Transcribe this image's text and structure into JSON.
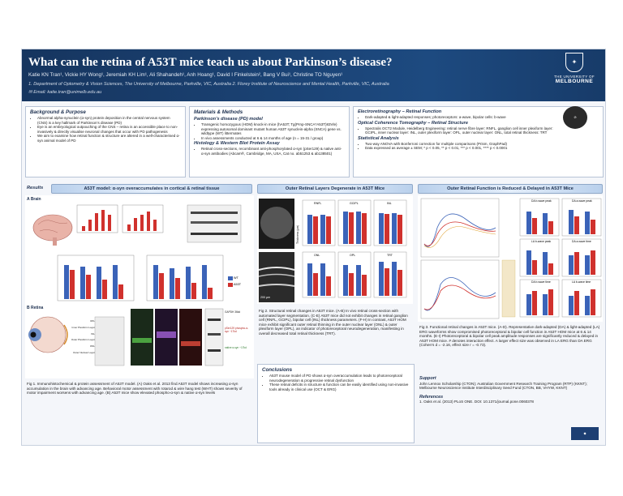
{
  "header": {
    "title": "What can the retina of A53T mice teach us about Parkinson’s disease?",
    "authors": "Katie KN Tran¹, Vickie HY Wong¹, Jeremiah KH Lim¹, Ali Shahandeh¹, Anh Hoang¹, David I Finkelstein², Bang V Bui¹, Christine TO Nguyen¹",
    "affiliations": "1. Department of Optometry & Vision Sciences, The University of Melbourne, Parkville, VIC, Australia  2. Florey Institute of Neuroscience and Mental Health, Parkville, VIC, Australia",
    "email": "✉ Email: katie.tran@unimelb.edu.au",
    "logo_line1": "THE UNIVERSITY OF",
    "logo_line2": "MELBOURNE"
  },
  "background": {
    "heading": "Background & Purpose",
    "bullets": [
      "Abnormal alpha-synuclein (α-syn) protein deposition in the central nervous system (CNS) is a key hallmark of Parkinson’s disease (PD)",
      "Eye is an embryological outpouching of the CNS – retina is an accessible place to non-invasively & directly visualise neuronal changes that occur with PD pathogenesis",
      "We aim to examine how retinal function & structure are altered in a well-characterised α-syn animal model of PD"
    ]
  },
  "methods": {
    "heading": "Materials & Methods",
    "sub1": "Parkinson’s disease (PD) model",
    "bullets1": [
      "Transgenic homozygous (HOM) knock-in mice (hA53T; Tg(Prnp-SNCA*A53T)83Vle) expressing autosomal dominant mutant human A53T synuclein-alpha (SNCA) gene vs. wildtype (WT) littermates",
      "In vivo assessments conducted at 6 & 14 months of age (n = 15-31 / group)"
    ],
    "sub2": "Histology & Western Blot Protein Assay",
    "bullets2": [
      "Retinal cross-sections, recombinant anti-phosphorylated α-syn (pSer129) & native anti-α-syn antibodies (Abcam®, Cambridge, MA, USA, Cat no. ab51253 & ab138501)"
    ]
  },
  "ephys": {
    "sub1": "Electroretinography – Retinal Function",
    "bullets1": [
      "Dark-adapted & light-adapted responses; photoreceptors: a-wave, bipolar cells: b-wave"
    ],
    "sub2": "Optical Coherence Tomography – Retinal Structure",
    "bullets2": [
      "Spectralis OCT2 Module, Heidelberg Engineering: retinal nerve fibre layer: RNFL, ganglion cell inner plexiform layer: GCIPL, inner nuclear layer: INL, outer plexiform layer: OPL, outer nuclear layer: ONL, total retinal thickness: TRT"
    ],
    "sub3": "Statistical Analysis",
    "bullets3": [
      "Two-way ANOVA with Bonferroni correction for multiple comparisons (Prism, GraphPad)",
      "Data expressed as average ± SEM; * p < 0.05, ** p < 0.01, *** p < 0.001, **** p < 0.0001"
    ]
  },
  "results": {
    "label": "Results",
    "panel1_title": "A53T model: α-syn overaccumulates in cortical & retinal tissue",
    "panel2_title": "Outer Retinal Layers Degenerate in A53T Mice",
    "panel3_title": "Outer Retinal Function is Reduced & Delayed in A53T Mice",
    "brain_label": "A  Brain",
    "retina_label": "B  Retina",
    "legend_wt": "WT",
    "legend_a53t": "A53T",
    "wb_label1": "pSer129 phospho-α-syn ~17kd",
    "wb_label2": "native α-syn ~17kd",
    "wb_gapdh": "GAPDH 36kd",
    "retina_layers": [
      "RFL",
      "Inner Plexiform Layer",
      "INL",
      "Outer Plexiform Layer",
      "ONL",
      "Outer Nuclear Layer"
    ],
    "oct_panels": [
      "RNFL",
      "GCIPL",
      "INL",
      "ONL",
      "OPL",
      "TRT"
    ],
    "oct_ylabel": "Thickness (µm)",
    "oct_x": [
      "6MO",
      "14MO"
    ],
    "erg_panels": [
      "DA b-wave peak",
      "DA a-wave peak",
      "LA b-wave peak",
      "DA a-wave time",
      "DA b-wave time",
      "LA b-wave time"
    ],
    "scalebar": "200 µm"
  },
  "captions": {
    "fig1": "Fig 1. Immunohistochemical & protein assessment of A53T model. (A) Oaks et al. 2013 find A53T model shows increasing α-syn accumulation in the brain with advancing age. Behavioral motor assessment with rotarod & wire hang test (WHT) shows severity of motor impairment worsens with advancing age. (B) A53T mice show elevated phospho-α-syn & native α-syn levels",
    "fig2": "Fig 2. Structural retinal changes in A53T mice. (A-B) In vivo retinal cross-section with automated layer segmentation. (C-E) A53T mice did not exhibit changes in retinal ganglion cell (RNFL, GCIPL), bipolar cell (INL) thickness parameters. (F-H) In contrast, A53T HOM mice exhibit significant outer retinal thinning in the outer nuclear layer (ONL) & outer plexiform layer (OPL), an indicator of photoreceptoral neurodegeneration, manifesting in overall decreased total retinal thickness (TRT).",
    "fig3": "Fig 3. Functional retinal changes in A53T mice. (A-D). Representative dark-adapted (DA) & light-adapted (LA) ERG waveforms show compromised photoreceptoral & bipolar cell function in A53T HOM mice at 6 & 14 months. (E-I) Photoreceptoral & bipolar cell peak amplitude responses are significantly reduced & delayed in A53T HOM mice. # denotes interaction effect. A larger effect size was observed in LA ERG than DA ERG (Cohen’s d = -2.16, effect size r = -0.73)."
  },
  "conclusions": {
    "heading": "Conclusions",
    "bullets": [
      "A53T mouse model of PD shows α-syn overaccumulation leads to photoreceptoral neurodegeneration & progressive retinal dysfunction",
      "These retinal deficits in structure & function can be easily identified using non-invasive tools already in clinical use (OCT & ERG)"
    ]
  },
  "support": {
    "heading": "Support",
    "text": "John Lennox Scholarship (CTON); Australian Government Research Training Program (RTP) (KKNT); Melbourne Neuroscience Institute Interdisciplinary Seed Fund (CTON, BB, VHYW, KKNT)"
  },
  "references": {
    "heading": "References",
    "item": "1. Oaks et al. (2013) PLoS ONE. DOI: 10.1371/journal.pone.0060378"
  },
  "colors": {
    "navy": "#16355f",
    "wt": "#3b63b8",
    "a53t": "#d0312d"
  }
}
